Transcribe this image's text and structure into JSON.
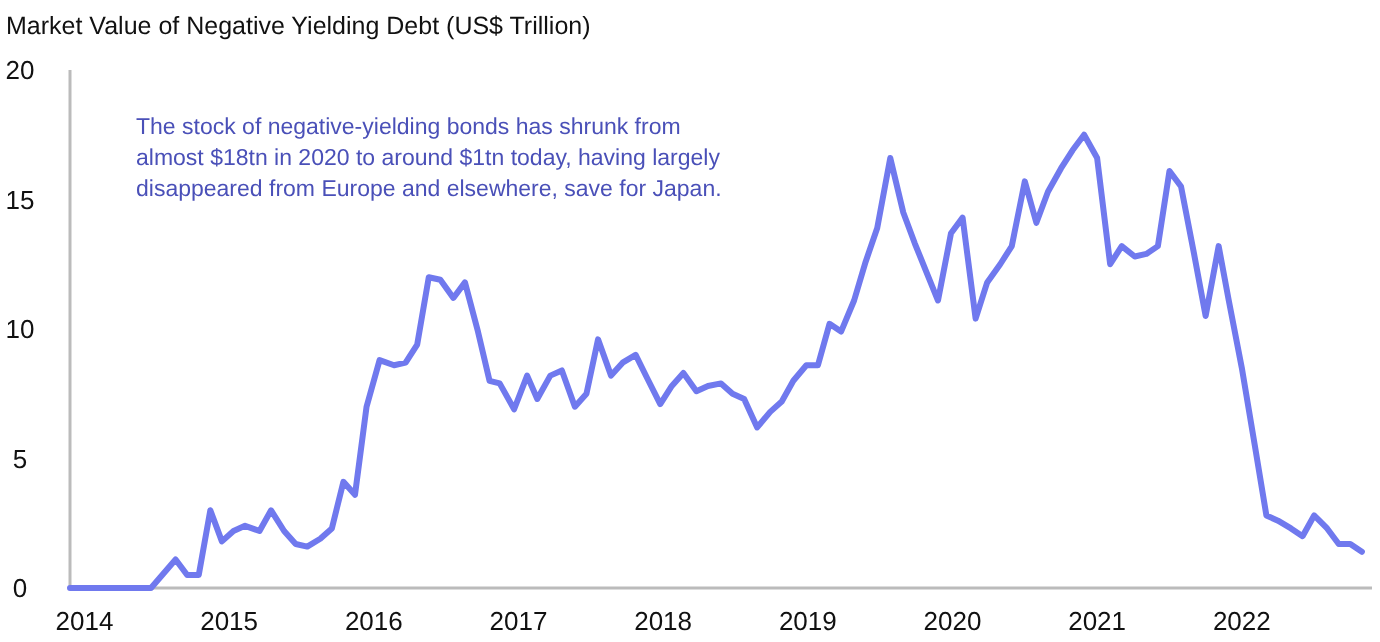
{
  "chart_data": {
    "type": "line",
    "title": "Market Value of Negative Yielding Debt (US$ Trillion)",
    "annotations": [
      "The stock of negative-yielding bonds has shrunk from almost $18tn in 2020 to around $1tn today, having largely disappeared from Europe and elsewhere, save for Japan."
    ],
    "xlim": [
      2013.9,
      2022.9
    ],
    "xticks": [
      2014,
      2015,
      2016,
      2017,
      2018,
      2019,
      2020,
      2021,
      2022
    ],
    "ylim": [
      0,
      20
    ],
    "yticks": [
      0,
      5,
      10,
      15,
      20
    ],
    "grid": false,
    "marker": "none",
    "line_style": "solid",
    "series": [
      {
        "color": "#7079ee",
        "x": [
          2013.9,
          2014.46,
          2014.63,
          2014.71,
          2014.79,
          2014.87,
          2014.95,
          2015.03,
          2015.11,
          2015.21,
          2015.29,
          2015.38,
          2015.46,
          2015.54,
          2015.63,
          2015.71,
          2015.79,
          2015.87,
          2015.95,
          2016.04,
          2016.14,
          2016.22,
          2016.3,
          2016.38,
          2016.46,
          2016.55,
          2016.63,
          2016.72,
          2016.8,
          2016.87,
          2016.97,
          2017.06,
          2017.13,
          2017.22,
          2017.3,
          2017.39,
          2017.47,
          2017.55,
          2017.64,
          2017.72,
          2017.81,
          2017.89,
          2017.98,
          2018.06,
          2018.14,
          2018.23,
          2018.31,
          2018.4,
          2018.48,
          2018.56,
          2018.65,
          2018.74,
          2018.82,
          2018.9,
          2018.99,
          2019.07,
          2019.15,
          2019.23,
          2019.32,
          2019.4,
          2019.48,
          2019.57,
          2019.66,
          2019.74,
          2019.82,
          2019.9,
          2019.99,
          2020.07,
          2020.16,
          2020.24,
          2020.33,
          2020.41,
          2020.5,
          2020.58,
          2020.66,
          2020.75,
          2020.83,
          2020.91,
          2021.0,
          2021.09,
          2021.17,
          2021.26,
          2021.34,
          2021.42,
          2021.5,
          2021.58,
          2021.67,
          2021.75,
          2021.84,
          2021.91,
          2022.0,
          2022.09,
          2022.17,
          2022.25,
          2022.34,
          2022.42,
          2022.5,
          2022.59,
          2022.67,
          2022.75,
          2022.83
        ],
        "values": [
          0,
          0,
          1.1,
          0.5,
          0.5,
          3.0,
          1.8,
          2.2,
          2.4,
          2.2,
          3.0,
          2.2,
          1.7,
          1.6,
          1.9,
          2.3,
          4.1,
          3.6,
          7.0,
          8.8,
          8.6,
          8.7,
          9.4,
          12.0,
          11.9,
          11.2,
          11.8,
          9.9,
          8.0,
          7.9,
          6.9,
          8.2,
          7.3,
          8.2,
          8.4,
          7.0,
          7.5,
          9.6,
          8.2,
          8.7,
          9.0,
          8.1,
          7.1,
          7.8,
          8.3,
          7.6,
          7.8,
          7.9,
          7.5,
          7.3,
          6.2,
          6.8,
          7.2,
          8.0,
          8.6,
          8.6,
          10.2,
          9.9,
          11.1,
          12.6,
          13.9,
          16.6,
          14.5,
          13.3,
          12.2,
          11.1,
          13.7,
          14.3,
          10.4,
          11.8,
          12.5,
          13.2,
          15.7,
          14.1,
          15.3,
          16.2,
          16.9,
          17.5,
          16.6,
          12.5,
          13.2,
          12.8,
          12.9,
          13.2,
          16.1,
          15.5,
          12.9,
          10.5,
          13.2,
          11.1,
          8.5,
          5.5,
          2.8,
          2.6,
          2.3,
          2.0,
          2.8,
          2.3,
          1.7,
          1.7,
          1.4
        ]
      }
    ]
  }
}
